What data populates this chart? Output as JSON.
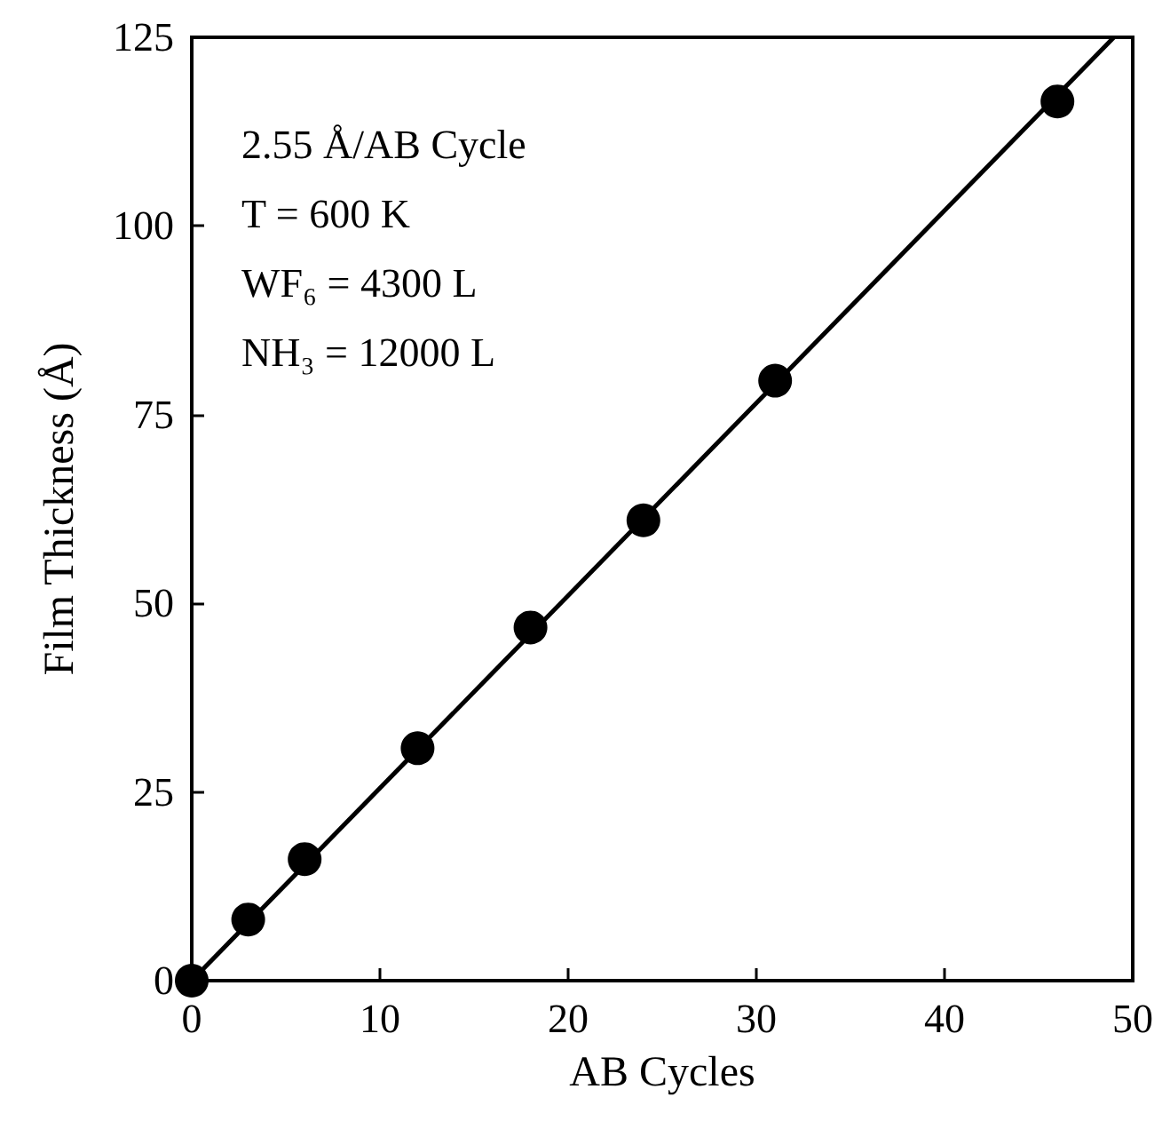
{
  "chart_data": {
    "type": "scatter",
    "xlabel": "AB Cycles",
    "ylabel": "Film Thickness (Å)",
    "annotations": [
      "2.55 Å/AB Cycle",
      "T = 600 K",
      "WF₆ = 4300 L",
      "NH₃ = 12000 L"
    ],
    "series": [
      {
        "color": "#000000",
        "marker": "circle",
        "x": [
          0,
          3,
          6,
          12,
          18,
          24,
          31,
          46
        ],
        "values": [
          0,
          8.1,
          16.1,
          30.8,
          46.8,
          61,
          79.5,
          116.5
        ]
      },
      {
        "type": "line",
        "color": "#000000",
        "marker": "none",
        "line_style": "solid",
        "x": [
          0,
          49
        ],
        "values": [
          0,
          125
        ]
      }
    ],
    "xlim": [
      0,
      50
    ],
    "ylim": [
      0,
      125
    ],
    "xticks": [
      0,
      10,
      20,
      30,
      40,
      50
    ],
    "yticks": [
      0,
      25,
      50,
      75,
      100,
      125
    ],
    "grid": false
  }
}
